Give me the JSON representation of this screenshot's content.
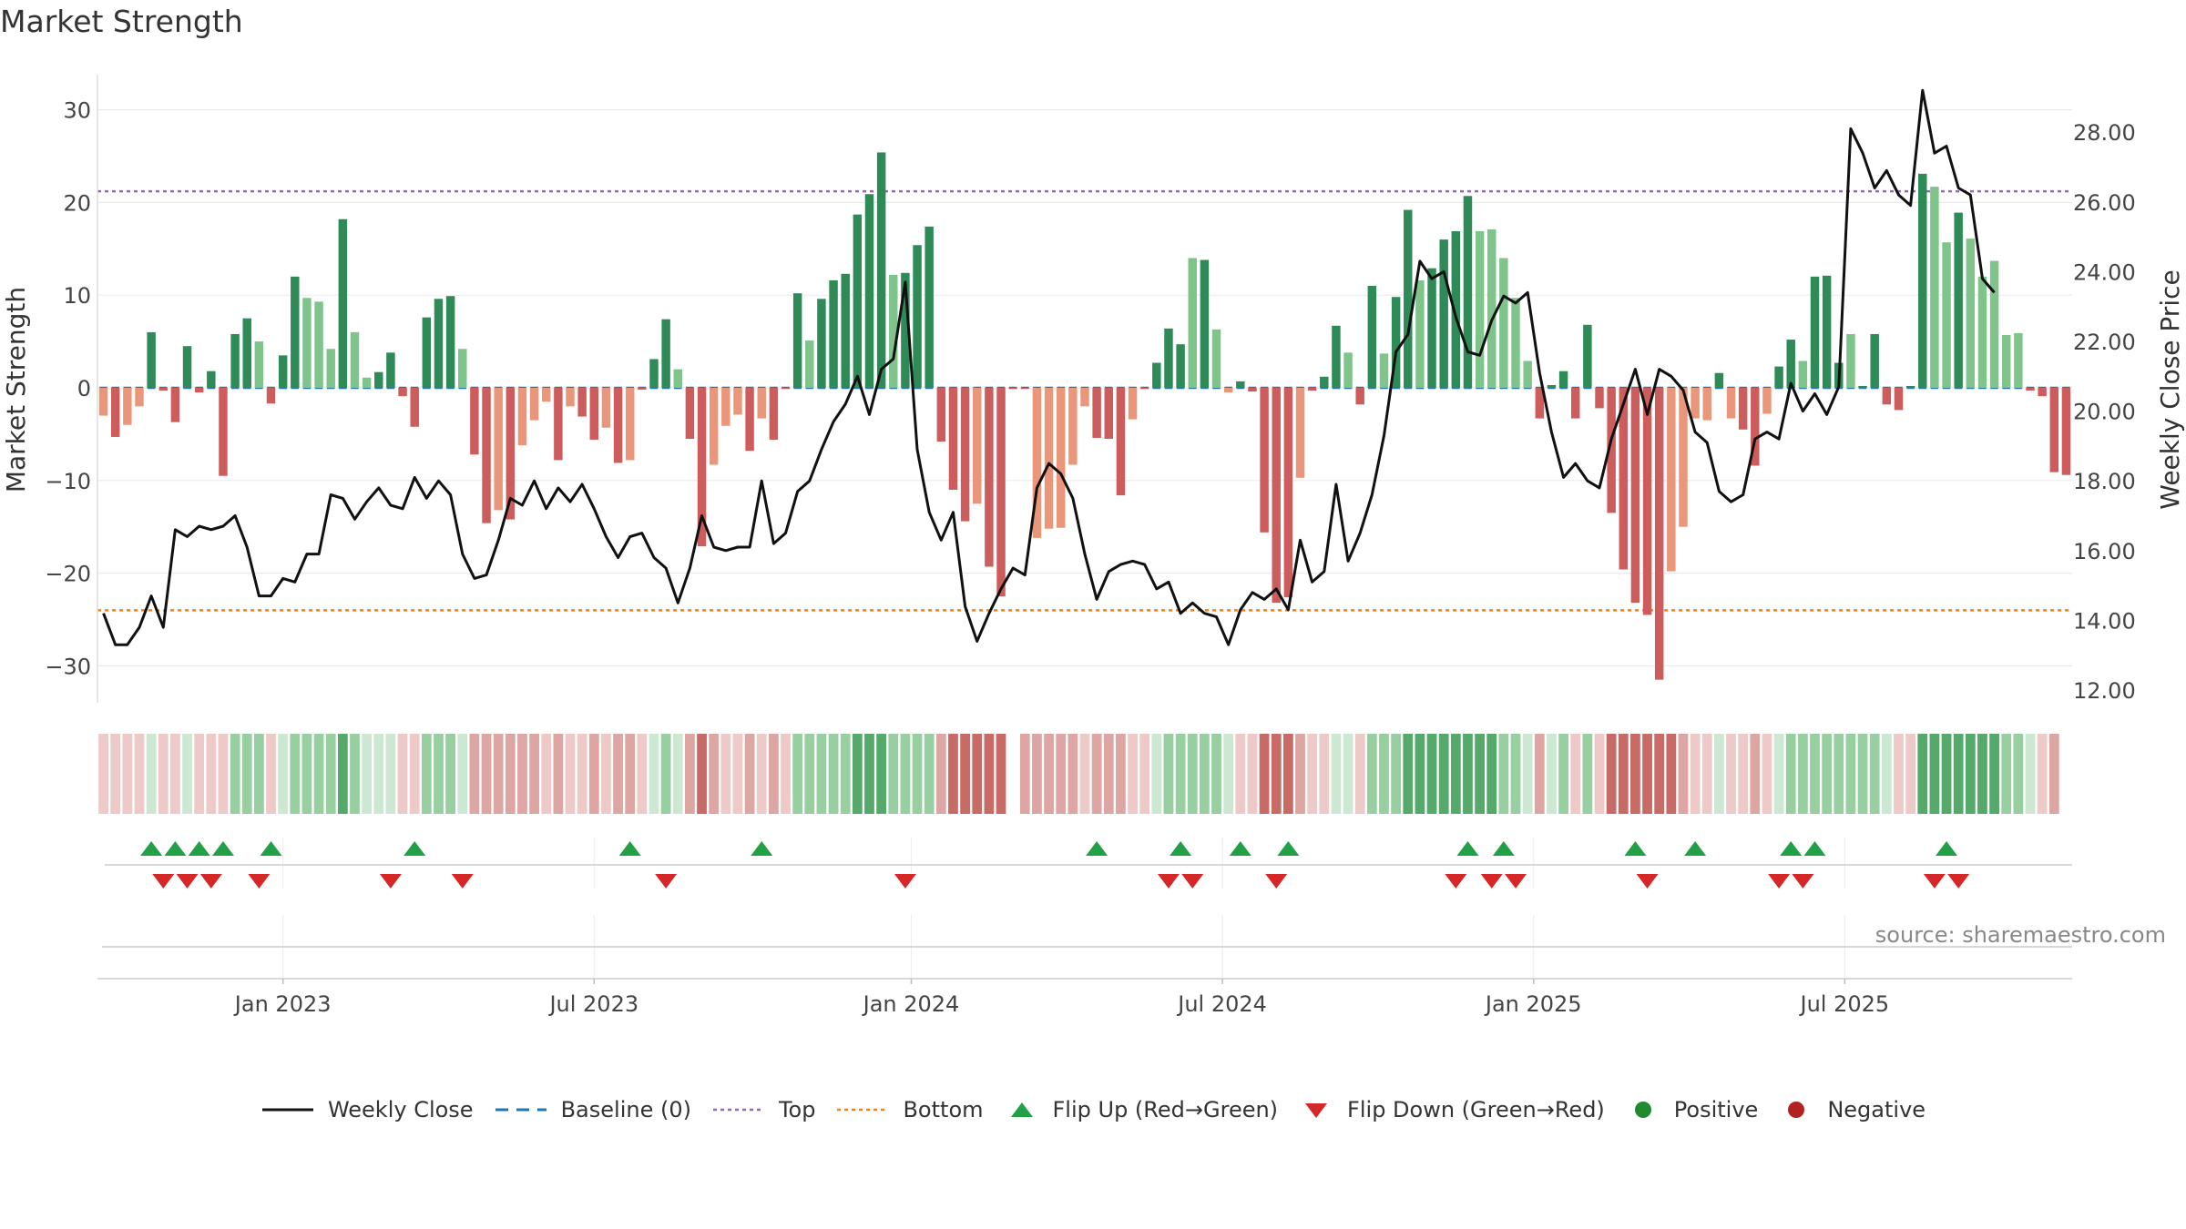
{
  "title": "Market Strength",
  "source": "source: sharemaestro.com",
  "colors": {
    "pos_strong": "#2e8b57",
    "pos_light": "#7fc48b",
    "neg_strong": "#cd5c5c",
    "neg_light": "#e9967a",
    "line": "#111111",
    "baseline": "#1f77b4",
    "top": "#9467bd",
    "bottom": "#ff7f0e",
    "flip_up": "#22a045",
    "flip_down": "#d62728"
  },
  "chart_data": {
    "type": "bar+line",
    "title": "Market Strength",
    "ylabel_left": "Market Strength",
    "ylabel_right": "Weekly Close Price",
    "ylim_left": [
      -35,
      35
    ],
    "ylim_right": [
      11,
      29
    ],
    "yticks_left": [
      "30",
      "20",
      "10",
      "0",
      "−10",
      "−20",
      "−30"
    ],
    "yticks_left_values": [
      30,
      20,
      10,
      0,
      -10,
      -20,
      -30
    ],
    "yticks_right": [
      "28.00",
      "26.00",
      "24.00",
      "22.00",
      "20.00",
      "18.00",
      "16.00",
      "14.00",
      "12.00"
    ],
    "yticks_right_values": [
      28,
      26,
      24,
      22,
      20,
      18,
      16,
      14,
      12
    ],
    "xticks": [
      "Jan 2023",
      "Jul 2023",
      "Jan 2024",
      "Jul 2024",
      "Jan 2025",
      "Jul 2025"
    ],
    "xtick_weeks": [
      15,
      41,
      67.5,
      93.5,
      119.5,
      145.5
    ],
    "top_line": 21.2,
    "bottom_line": -24,
    "strength": [
      -3,
      -5.3,
      -4,
      -2,
      6,
      -0.3,
      -3.7,
      4.5,
      -0.5,
      1.8,
      -9.5,
      5.8,
      7.5,
      5,
      -1.7,
      3.5,
      12,
      9.7,
      9.3,
      4.2,
      18.2,
      6,
      1.1,
      1.7,
      3.8,
      -0.9,
      -4.2,
      7.6,
      9.6,
      9.9,
      4.2,
      -7.2,
      -14.6,
      -13.2,
      -14.2,
      -6.2,
      -3.5,
      -1.5,
      -7.8,
      -2,
      -3.1,
      -5.6,
      -4.3,
      -8.1,
      -7.8,
      -0.2,
      3.1,
      7.4,
      2,
      -5.5,
      -17.1,
      -8.3,
      -4.1,
      -2.9,
      -6.8,
      -3.3,
      -5.6,
      -0.1,
      10.2,
      5.1,
      9.6,
      11.6,
      12.3,
      18.7,
      20.9,
      25.4,
      12.2,
      12.4,
      15.4,
      17.4,
      -5.8,
      -11,
      -14.4,
      -12.5,
      -19.3,
      -22.5,
      -0.1,
      -0.1,
      -16.2,
      -15.2,
      -15.1,
      -8.3,
      -2,
      -5.4,
      -5.5,
      -11.6,
      -3.4,
      -0.1,
      2.7,
      6.4,
      4.7,
      14,
      13.8,
      6.3,
      -0.5,
      0.7,
      -0.4,
      -15.6,
      -23.2,
      -22.6,
      -9.7,
      -0.3,
      1.2,
      6.7,
      3.8,
      -1.8,
      11,
      3.7,
      9.8,
      19.2,
      11.6,
      12.9,
      16,
      16.9,
      20.7,
      16.9,
      17.1,
      14,
      9.7,
      2.9,
      -3.3,
      0.3,
      1.8,
      -3.3,
      6.8,
      -2.2,
      -13.5,
      -19.6,
      -23.2,
      -24.5,
      -31.5,
      -19.8,
      -15,
      -3.3,
      -3.5,
      1.6,
      -3.3,
      -4.5,
      -8.4,
      -2.8,
      2.3,
      5.2,
      2.9,
      12,
      12.1,
      2.7,
      5.8,
      0.2,
      5.8,
      -1.8,
      -2.4,
      0.2,
      23.1,
      21.7,
      15.7,
      18.9,
      16.1,
      12,
      13.7,
      5.7,
      5.9,
      -0.3,
      -0.9,
      -9.1,
      -9.4
    ],
    "strength_shade": [
      "L",
      "S",
      "L",
      "L",
      "S",
      "S",
      "S",
      "S",
      "S",
      "S",
      "S",
      "S",
      "S",
      "L",
      "S",
      "S",
      "S",
      "L",
      "L",
      "L",
      "S",
      "L",
      "L",
      "S",
      "S",
      "S",
      "S",
      "S",
      "S",
      "S",
      "L",
      "S",
      "S",
      "L",
      "S",
      "L",
      "L",
      "L",
      "S",
      "L",
      "S",
      "S",
      "L",
      "S",
      "L",
      "S",
      "S",
      "S",
      "L",
      "S",
      "S",
      "L",
      "L",
      "L",
      "S",
      "L",
      "S",
      "S",
      "S",
      "L",
      "S",
      "S",
      "S",
      "S",
      "S",
      "S",
      "L",
      "S",
      "S",
      "S",
      "S",
      "S",
      "S",
      "L",
      "S",
      "S",
      "S",
      "S",
      "L",
      "L",
      "L",
      "L",
      "L",
      "S",
      "S",
      "S",
      "L",
      "S",
      "S",
      "S",
      "S",
      "L",
      "S",
      "L",
      "L",
      "S",
      "S",
      "S",
      "S",
      "S",
      "L",
      "S",
      "S",
      "S",
      "L",
      "S",
      "S",
      "L",
      "S",
      "S",
      "L",
      "S",
      "S",
      "S",
      "S",
      "L",
      "L",
      "L",
      "L",
      "L",
      "S",
      "S",
      "S",
      "S",
      "S",
      "S",
      "S",
      "S",
      "S",
      "S",
      "S",
      "L",
      "L",
      "L",
      "L",
      "S",
      "L",
      "S",
      "S",
      "L",
      "S",
      "S",
      "L",
      "S",
      "S",
      "S",
      "L",
      "S",
      "S",
      "S",
      "S",
      "S",
      "S",
      "L",
      "L",
      "S",
      "L",
      "L",
      "L",
      "L",
      "L",
      "S",
      "S",
      "S",
      "S",
      "S",
      "S"
    ],
    "weekly_close": [
      14.2,
      13.3,
      13.3,
      13.8,
      14.7,
      13.8,
      16.6,
      16.4,
      16.7,
      16.6,
      16.7,
      17.0,
      16.1,
      14.7,
      14.7,
      15.2,
      15.1,
      15.9,
      15.9,
      17.6,
      17.5,
      16.9,
      17.4,
      17.8,
      17.3,
      17.2,
      18.1,
      17.5,
      18.0,
      17.6,
      15.9,
      15.2,
      15.3,
      16.3,
      17.5,
      17.3,
      18.0,
      17.2,
      17.8,
      17.4,
      17.9,
      17.2,
      16.4,
      15.8,
      16.4,
      16.5,
      15.8,
      15.5,
      14.5,
      15.5,
      17.0,
      16.1,
      16.0,
      16.1,
      16.1,
      18.0,
      16.2,
      16.5,
      17.7,
      18.0,
      18.9,
      19.7,
      20.2,
      21.0,
      19.9,
      21.2,
      21.5,
      23.7,
      18.9,
      17.1,
      16.3,
      17.1,
      14.4,
      13.4,
      14.2,
      14.9,
      15.5,
      15.3,
      17.8,
      18.5,
      18.2,
      17.5,
      15.9,
      14.6,
      15.4,
      15.6,
      15.7,
      15.6,
      14.9,
      15.1,
      14.2,
      14.5,
      14.2,
      14.1,
      13.3,
      14.3,
      14.8,
      14.6,
      14.9,
      14.3,
      16.3,
      15.1,
      15.4,
      17.9,
      15.7,
      16.5,
      17.6,
      19.3,
      21.7,
      22.2,
      24.3,
      23.8,
      24.0,
      22.7,
      21.7,
      21.6,
      22.6,
      23.3,
      23.1,
      23.4,
      21.1,
      19.4,
      18.1,
      18.5,
      18.0,
      17.8,
      19.2,
      20.2,
      21.2,
      19.9,
      21.2,
      21.0,
      20.6,
      19.4,
      19.1,
      17.7,
      17.4,
      17.6,
      19.2,
      19.4,
      19.2,
      20.8,
      20.0,
      20.5,
      19.9,
      20.7,
      28.1,
      27.4,
      26.4,
      26.9,
      26.2,
      25.9,
      29.2,
      27.4,
      27.6,
      26.4,
      26.2,
      23.8,
      23.4
    ],
    "strength_band": [
      "L3",
      "L3",
      "L3",
      "L3",
      "G3",
      "L3",
      "L3",
      "G3",
      "L3",
      "L3",
      "L3",
      "G2",
      "G2",
      "G2",
      "L3",
      "G3",
      "G2",
      "G2",
      "G2",
      "G2",
      "G1",
      "G2",
      "G3",
      "G3",
      "G3",
      "L3",
      "L3",
      "G2",
      "G2",
      "G2",
      "G3",
      "L2",
      "L2",
      "L2",
      "L2",
      "L2",
      "L2",
      "L3",
      "L2",
      "L3",
      "L3",
      "L2",
      "L3",
      "L2",
      "L2",
      "L3",
      "G3",
      "G2",
      "G3",
      "L2",
      "L1",
      "L2",
      "L3",
      "L3",
      "L2",
      "L3",
      "L2",
      "L3",
      "G2",
      "G2",
      "G2",
      "G2",
      "G2",
      "G1",
      "G1",
      "G1",
      "G2",
      "G2",
      "G2",
      "G2",
      "L2",
      "L1",
      "L1",
      "L1",
      "L1",
      "L1",
      "W",
      "L2",
      "L2",
      "L2",
      "L2",
      "L2",
      "L3",
      "L2",
      "L2",
      "L2",
      "L3",
      "L3",
      "G3",
      "G2",
      "G2",
      "G2",
      "G2",
      "G2",
      "G3",
      "L3",
      "L3",
      "L1",
      "L1",
      "L1",
      "L2",
      "L3",
      "L3",
      "G3",
      "G3",
      "L3",
      "G2",
      "G2",
      "G2",
      "G1",
      "G1",
      "G1",
      "G1",
      "G1",
      "G1",
      "G1",
      "G1",
      "G2",
      "G2",
      "G3",
      "L2",
      "G3",
      "G2",
      "L3",
      "G2",
      "L3",
      "L1",
      "L1",
      "L1",
      "L1",
      "L1",
      "L1",
      "L2",
      "L3",
      "L3",
      "G3",
      "L3",
      "L3",
      "L2",
      "L3",
      "G3",
      "G2",
      "G2",
      "G2",
      "G2",
      "G2",
      "G2",
      "G2",
      "G2",
      "G3",
      "L3",
      "L3",
      "G1",
      "G1",
      "G1",
      "G1",
      "G1",
      "G1",
      "G1",
      "G2",
      "G2",
      "G3",
      "L3",
      "L2"
    ],
    "flip_up_weeks": [
      4,
      6,
      8,
      10,
      14,
      26,
      44,
      55,
      83,
      90,
      95,
      99,
      114,
      117,
      128,
      133,
      141,
      143,
      154
    ],
    "flip_down_weeks": [
      5,
      7,
      9,
      13,
      24,
      30,
      47,
      67,
      89,
      91,
      98,
      113,
      116,
      118,
      129,
      140,
      142,
      153,
      155
    ],
    "legend": [
      "Weekly Close",
      "Baseline (0)",
      "Top",
      "Bottom",
      "Flip Up (Red→Green)",
      "Flip Down (Green→Red)",
      "Positive",
      "Negative"
    ]
  }
}
